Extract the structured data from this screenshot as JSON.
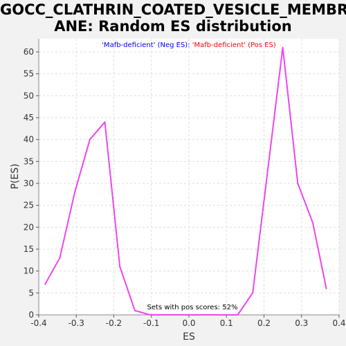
{
  "chart_data": {
    "type": "line",
    "title": "GOCC_CLATHRIN_COATED_VESICLE_MEMBRANE: Random ES distribution",
    "title_lines": [
      "GOCC_CLATHRIN_COATED_VESICLE_MEMBR",
      "ANE: Random ES distribution"
    ],
    "xlabel": "ES",
    "ylabel": "P(ES)",
    "xlim": [
      -0.4,
      0.4
    ],
    "ylim": [
      0,
      63
    ],
    "x_ticks": [
      -0.4,
      -0.3,
      -0.2,
      -0.1,
      0.0,
      0.1,
      0.2,
      0.3,
      0.4
    ],
    "x_tick_labels": [
      "-0.4",
      "-0.3",
      "-0.2",
      "-0.1",
      "0.0",
      "0.1",
      "0.2",
      "0.3",
      "0.4"
    ],
    "y_ticks": [
      0,
      5,
      10,
      15,
      20,
      25,
      30,
      35,
      40,
      45,
      50,
      55,
      60
    ],
    "grid": true,
    "legend_parts": [
      {
        "text": "'Mafb-deficient' (Neg ES): ",
        "color": "#0000ff"
      },
      {
        "text": "'Mafb-deficient' (Pos ES)",
        "color": "#ff0000"
      }
    ],
    "annotation": "Sets with pos scores: 52%",
    "series": [
      {
        "color": "#ee44ee",
        "x": [
          -0.383,
          -0.344,
          -0.304,
          -0.264,
          -0.224,
          -0.184,
          -0.144,
          -0.104,
          -0.064,
          -0.024,
          0.016,
          0.056,
          0.096,
          0.13,
          0.17,
          0.21,
          0.25,
          0.29,
          0.33,
          0.366
        ],
        "y": [
          7,
          13,
          28,
          40,
          44,
          11,
          1,
          0,
          0,
          0,
          0,
          0,
          0,
          0,
          5,
          33,
          61,
          30,
          21,
          6
        ]
      }
    ]
  }
}
